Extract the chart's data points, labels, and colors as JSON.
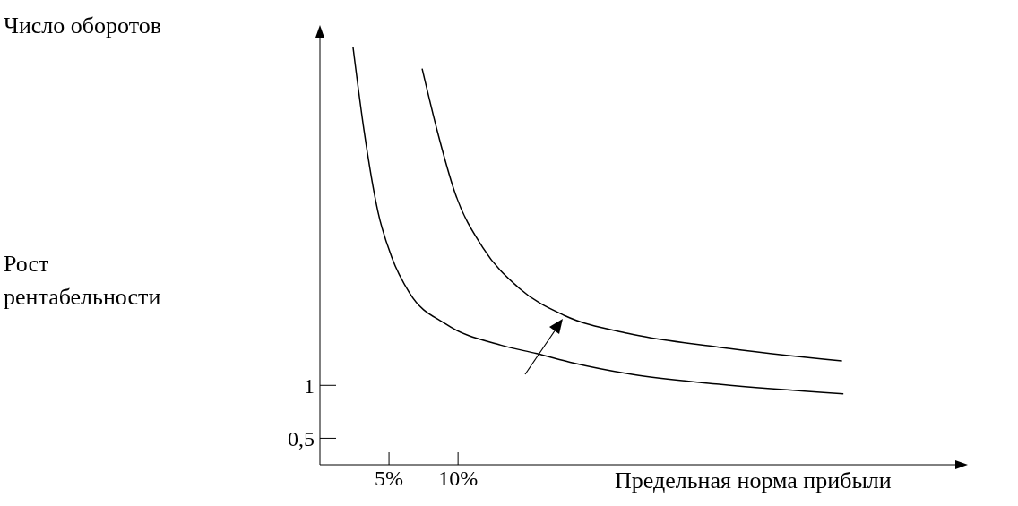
{
  "chart_data": {
    "type": "line",
    "xlabel": "Предельная норма прибыли",
    "annotations": [
      "Число оборотов",
      "Рост рентабельности"
    ],
    "xlim": [
      0,
      46
    ],
    "xticks": [
      {
        "value": 5,
        "label": "5%"
      },
      {
        "value": 10,
        "label": "10%"
      }
    ],
    "ylim": [
      0.25,
      4.3
    ],
    "yticks": [
      {
        "value": 0.5,
        "label": "0,5"
      },
      1
    ],
    "marker": "none",
    "line_style": "solid",
    "series": [
      {
        "color": "#000000",
        "x": [
          2.4,
          3.2,
          4.2,
          5.2,
          6.5,
          9.1,
          13.1,
          15.7,
          18.4,
          22.3,
          28.9,
          37.9
        ],
        "values": [
          4.19,
          3.4,
          2.64,
          2.21,
          1.87,
          1.58,
          1.38,
          1.3,
          1.21,
          1.11,
          1.01,
          0.92
        ]
      },
      {
        "color": "#000000",
        "x": [
          7.4,
          8.5,
          9.8,
          11.8,
          14.4,
          17.7,
          22.3,
          28.9,
          37.8
        ],
        "values": [
          3.99,
          3.4,
          2.81,
          2.3,
          1.92,
          1.66,
          1.49,
          1.36,
          1.23
        ]
      }
    ]
  }
}
